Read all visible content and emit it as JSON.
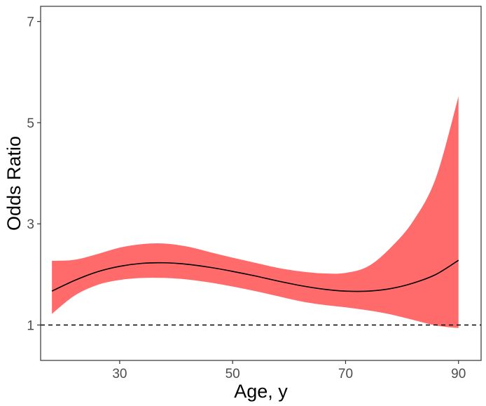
{
  "chart_data": {
    "type": "line",
    "title": "",
    "xlabel": "Age, y",
    "ylabel": "Odds Ratio",
    "xlim": [
      16,
      94
    ],
    "ylim": [
      0.3,
      7.3
    ],
    "x_ticks": [
      30,
      50,
      70,
      90
    ],
    "y_ticks": [
      1,
      3,
      5,
      7
    ],
    "x_tick_labels": [
      "30",
      "50",
      "70",
      "90"
    ],
    "y_tick_labels": [
      "1",
      "3",
      "5",
      "7"
    ],
    "grid": false,
    "legend": "none",
    "reference_line": {
      "y": 1,
      "style": "dashed"
    },
    "series": [
      {
        "x": [
          18,
          22,
          26,
          30,
          34,
          38,
          42,
          46,
          50,
          54,
          58,
          62,
          66,
          70,
          74,
          78,
          82,
          86,
          90
        ],
        "y": [
          1.67,
          1.88,
          2.05,
          2.16,
          2.22,
          2.23,
          2.2,
          2.14,
          2.06,
          1.97,
          1.87,
          1.78,
          1.71,
          1.67,
          1.67,
          1.72,
          1.83,
          2.0,
          2.28
        ],
        "lower": [
          1.22,
          1.58,
          1.79,
          1.89,
          1.93,
          1.93,
          1.9,
          1.84,
          1.76,
          1.67,
          1.57,
          1.47,
          1.4,
          1.35,
          1.29,
          1.21,
          1.1,
          0.99,
          0.94
        ],
        "upper": [
          2.27,
          2.29,
          2.4,
          2.53,
          2.6,
          2.61,
          2.55,
          2.44,
          2.33,
          2.23,
          2.13,
          2.06,
          2.02,
          2.03,
          2.16,
          2.53,
          3.06,
          3.91,
          5.52
        ]
      }
    ],
    "colors": {
      "band": "#ff6b6b",
      "line": "#000000",
      "reference": "#000000",
      "axis": "#333333",
      "tick_label": "#4d4d4d"
    }
  }
}
